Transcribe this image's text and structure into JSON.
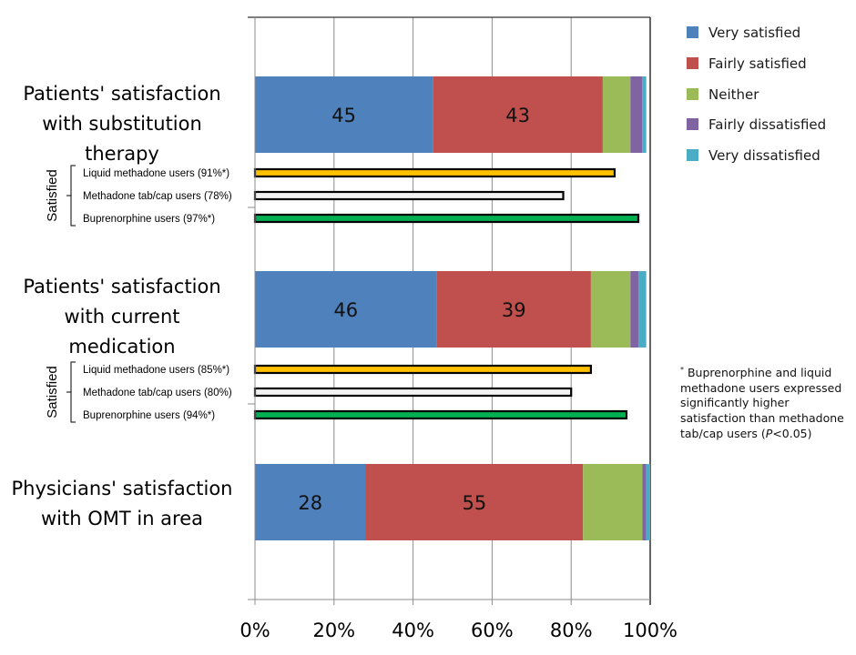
{
  "chart_data": {
    "type": "bar",
    "orientation": "horizontal",
    "stacked": true,
    "title": "",
    "xlabel": "",
    "ylabel": "",
    "xlim": [
      0,
      100
    ],
    "x_ticks": [
      "0%",
      "20%",
      "40%",
      "60%",
      "80%",
      "100%"
    ],
    "grid": true,
    "legend_position": "top-right",
    "legend": [
      {
        "name": "Very satisfied",
        "color": "#4f81bd"
      },
      {
        "name": "Fairly satisfied",
        "color": "#c0504d"
      },
      {
        "name": "Neither",
        "color": "#9bbb59"
      },
      {
        "name": "Fairly dissatisfied",
        "color": "#8064a2"
      },
      {
        "name": "Very dissatisfied",
        "color": "#4bacc6"
      }
    ],
    "stacked_bars": [
      {
        "category": "Patients' satisfaction with substitution therapy",
        "category_lines": [
          "Patients' satisfaction",
          "with substitution",
          "therapy"
        ],
        "values": [
          45,
          43,
          7,
          3,
          1
        ],
        "labels": [
          "45",
          "43",
          "",
          "",
          ""
        ]
      },
      {
        "category": "Patients' satisfaction with current medication",
        "category_lines": [
          "Patients' satisfaction",
          "with current",
          "medication"
        ],
        "values": [
          46,
          39,
          10,
          2,
          2
        ],
        "labels": [
          "46",
          "39",
          "",
          "",
          ""
        ]
      },
      {
        "category": "Physicians' satisfaction with OMT in area",
        "category_lines": [
          "Physicians' satisfaction",
          "with OMT in area"
        ],
        "values": [
          28,
          55,
          15,
          1,
          1
        ],
        "labels": [
          "28",
          "55",
          "",
          "",
          ""
        ]
      }
    ],
    "satisfied_groups": [
      {
        "group_label": "Satisfied",
        "after_bar": 0,
        "bars": [
          {
            "label": "Liquid methadone users (91%*)",
            "value": 91,
            "color": "#ffc000"
          },
          {
            "label": "Methadone tab/cap users (78%)",
            "value": 78,
            "color": "#f2f2f2"
          },
          {
            "label": "Buprenorphine users (97%*)",
            "value": 97,
            "color": "#00b050"
          }
        ]
      },
      {
        "group_label": "Satisfied",
        "after_bar": 1,
        "bars": [
          {
            "label": "Liquid methadone users (85%*)",
            "value": 85,
            "color": "#ffc000"
          },
          {
            "label": "Methadone tab/cap users (80%)",
            "value": 80,
            "color": "#f2f2f2"
          },
          {
            "label": "Buprenorphine users (94%*)",
            "value": 94,
            "color": "#00b050"
          }
        ]
      }
    ],
    "annotation": {
      "marker": "*",
      "text_before_p": "Buprenorphine and liquid methadone users expressed significantly higher satisfaction than methadone tab/cap users (",
      "p_symbol": "P",
      "text_after_p": "<0.05)"
    }
  }
}
